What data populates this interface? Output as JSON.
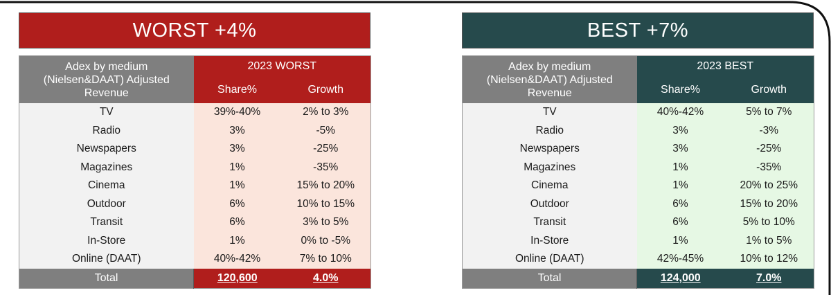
{
  "worst": {
    "banner": "WORST +4%",
    "header": {
      "medium_line1": "Adex by medium",
      "medium_line2": "(Nielsen&DAAT) Adjusted",
      "medium_line3": "Revenue",
      "scenario": "2023 WORST",
      "share": "Share%",
      "growth": "Growth"
    },
    "rows": [
      {
        "medium": "TV",
        "share": "39%-40%",
        "growth": "2% to 3%"
      },
      {
        "medium": "Radio",
        "share": "3%",
        "growth": "-5%"
      },
      {
        "medium": "Newspapers",
        "share": "3%",
        "growth": "-25%"
      },
      {
        "medium": "Magazines",
        "share": "1%",
        "growth": "-35%"
      },
      {
        "medium": "Cinema",
        "share": "1%",
        "growth": "15% to 20%"
      },
      {
        "medium": "Outdoor",
        "share": "6%",
        "growth": "10% to 15%"
      },
      {
        "medium": "Transit",
        "share": "6%",
        "growth": "3% to 5%"
      },
      {
        "medium": "In-Store",
        "share": "1%",
        "growth": "0% to -5%"
      },
      {
        "medium": "Online (DAAT)",
        "share": "40%-42%",
        "growth": "7% to 10%"
      }
    ],
    "total": {
      "label": "Total",
      "share": "120,600",
      "growth": "4.0%"
    }
  },
  "best": {
    "banner": "BEST +7%",
    "header": {
      "medium_line1": "Adex by medium",
      "medium_line2": "(Nielsen&DAAT) Adjusted",
      "medium_line3": "Revenue",
      "scenario": "2023 BEST",
      "share": "Share%",
      "growth": "Growth"
    },
    "rows": [
      {
        "medium": "TV",
        "share": "40%-42%",
        "growth": "5% to 7%"
      },
      {
        "medium": "Radio",
        "share": "3%",
        "growth": "-3%"
      },
      {
        "medium": "Newspapers",
        "share": "3%",
        "growth": "-25%"
      },
      {
        "medium": "Magazines",
        "share": "1%",
        "growth": "-35%"
      },
      {
        "medium": "Cinema",
        "share": "1%",
        "growth": "20% to 25%"
      },
      {
        "medium": "Outdoor",
        "share": "6%",
        "growth": "15% to 20%"
      },
      {
        "medium": "Transit",
        "share": "6%",
        "growth": "5% to 10%"
      },
      {
        "medium": "In-Store",
        "share": "1%",
        "growth": "1% to 5%"
      },
      {
        "medium": "Online (DAAT)",
        "share": "42%-45%",
        "growth": "10% to 12%"
      }
    ],
    "total": {
      "label": "Total",
      "share": "124,000",
      "growth": "7.0%"
    }
  },
  "colors": {
    "worst_accent": "#b01e1c",
    "best_accent": "#264a4c",
    "header_gray": "#7f7f7f",
    "worst_cell_fill": "#fbe5dc",
    "best_cell_fill": "#e6f8e4",
    "medium_cell_fill": "#f2f2f2"
  }
}
